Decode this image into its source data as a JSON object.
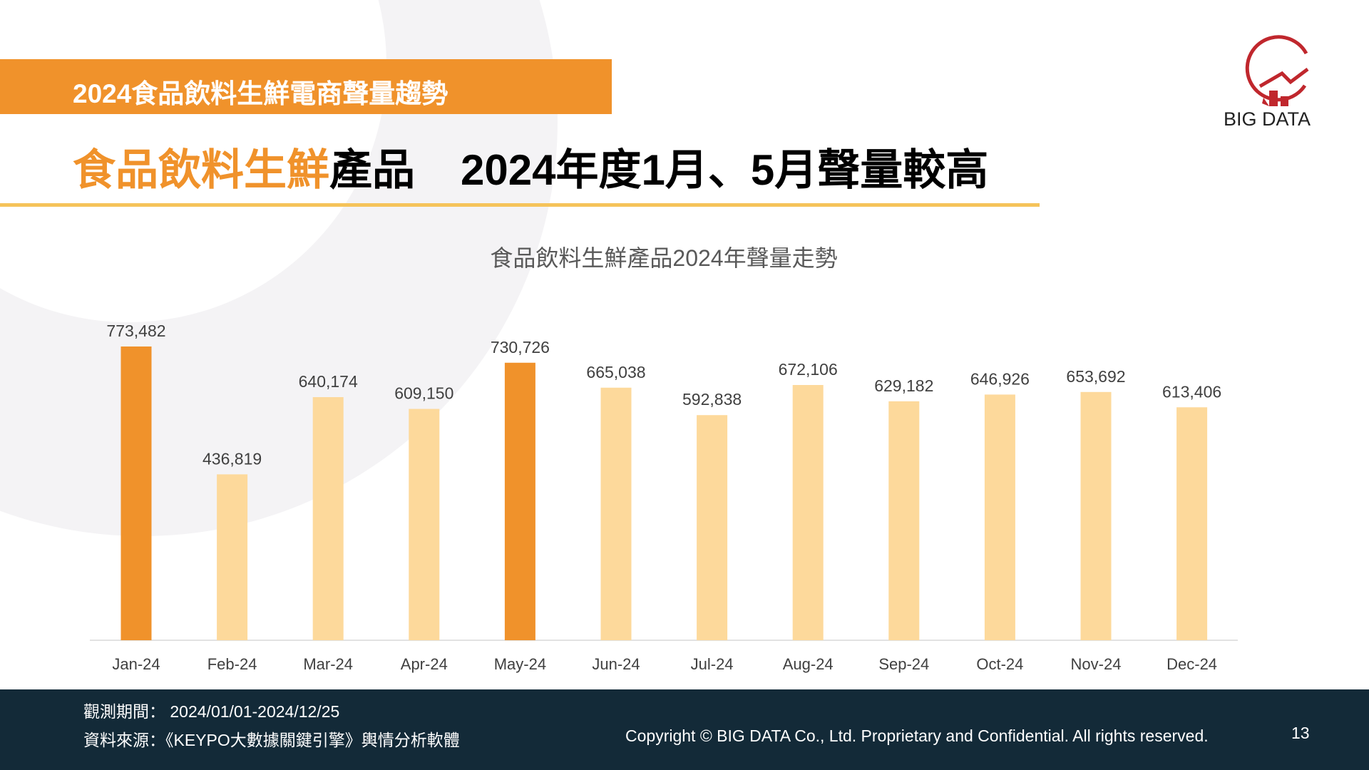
{
  "header": {
    "banner": "2024食品飲料生鮮電商聲量趨勢",
    "title_highlight": "食品飲料生鮮",
    "title_part1": "產品",
    "title_part2": "2024年度1月、5月聲量較高"
  },
  "logo": {
    "text": "BIG DATA"
  },
  "colors": {
    "accent": "#f0922b",
    "bar_light": "#fdd99b",
    "footer_bg": "#132a38",
    "logo_red": "#c0272d"
  },
  "chart_data": {
    "type": "bar",
    "title": "食品飲料生鮮產品2024年聲量走勢",
    "categories": [
      "Jan-24",
      "Feb-24",
      "Mar-24",
      "Apr-24",
      "May-24",
      "Jun-24",
      "Jul-24",
      "Aug-24",
      "Sep-24",
      "Oct-24",
      "Nov-24",
      "Dec-24"
    ],
    "values": [
      773482,
      436819,
      640174,
      609150,
      730726,
      665038,
      592838,
      672106,
      629182,
      646926,
      653692,
      613406
    ],
    "value_labels": [
      "773,482",
      "436,819",
      "640,174",
      "609,150",
      "730,726",
      "665,038",
      "592,838",
      "672,106",
      "629,182",
      "646,926",
      "653,692",
      "613,406"
    ],
    "highlighted": [
      "Jan-24",
      "May-24"
    ],
    "xlabel": "",
    "ylabel": "",
    "ylim": [
      0,
      773482
    ],
    "grid": false,
    "legend": "none"
  },
  "footer": {
    "period": "觀測期間： 2024/01/01-2024/12/25",
    "source": "資料來源：《KEYPO大數據關鍵引擎》輿情分析軟體",
    "copyright": "Copyright © BIG DATA Co., Ltd. Proprietary and Confidential. All rights reserved.",
    "page": "13"
  }
}
